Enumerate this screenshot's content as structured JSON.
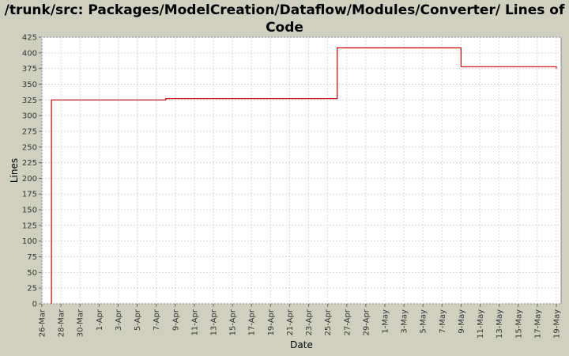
{
  "chart_data": {
    "type": "line",
    "title": "/trunk/src: Packages/ModelCreation/Dataflow/Modules/Converter/ Lines of Code",
    "xlabel": "Date",
    "ylabel": "Lines",
    "ylim": [
      0,
      425
    ],
    "yticks": [
      0,
      25,
      50,
      75,
      100,
      125,
      150,
      175,
      200,
      225,
      250,
      275,
      300,
      325,
      350,
      375,
      400,
      425
    ],
    "x_tick_labels": [
      "26-Mar",
      "28-Mar",
      "30-Mar",
      "1-Apr",
      "3-Apr",
      "5-Apr",
      "7-Apr",
      "9-Apr",
      "11-Apr",
      "13-Apr",
      "15-Apr",
      "17-Apr",
      "19-Apr",
      "21-Apr",
      "23-Apr",
      "25-Apr",
      "27-Apr",
      "29-Apr",
      "1-May",
      "3-May",
      "5-May",
      "7-May",
      "9-May",
      "11-May",
      "13-May",
      "15-May",
      "17-May",
      "19-May"
    ],
    "grid": true,
    "step": true,
    "series": [
      {
        "color": "#cc0000",
        "x": [
          "2025-03-27",
          "2025-03-27",
          "2025-04-08",
          "2025-04-08",
          "2025-04-26",
          "2025-04-26",
          "2025-05-09",
          "2025-05-09",
          "2025-05-19",
          "2025-05-19"
        ],
        "y": [
          0,
          325,
          325,
          327,
          327,
          408,
          408,
          378,
          378,
          375
        ]
      }
    ]
  }
}
